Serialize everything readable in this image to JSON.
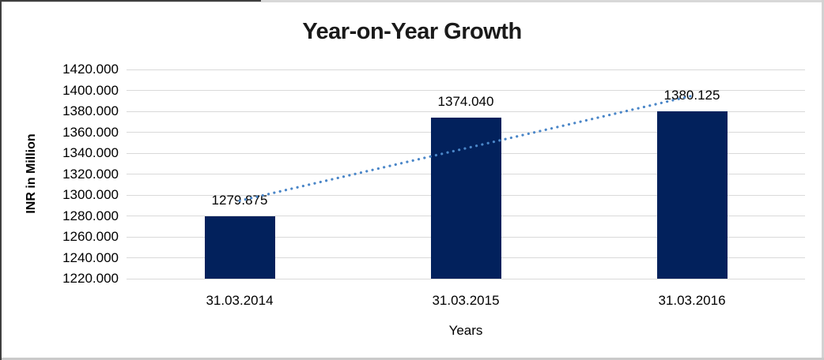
{
  "chart_data": {
    "type": "bar",
    "title": "Year-on-Year Growth",
    "categories": [
      "31.03.2014",
      "31.03.2015",
      "31.03.2016"
    ],
    "values": [
      1279.875,
      1374.04,
      1380.125
    ],
    "data_labels": [
      "1279.875",
      "1374.040",
      "1380.125"
    ],
    "xlabel": "Years",
    "ylabel": "INR in Million",
    "ylim": [
      1220,
      1420
    ],
    "ytick_step": 20,
    "ytick_labels": [
      "1420.000",
      "1400.000",
      "1380.000",
      "1360.000",
      "1340.000",
      "1320.000",
      "1300.000",
      "1280.000",
      "1260.000",
      "1240.000",
      "1220.000"
    ],
    "grid": true,
    "legend": "none",
    "bar_color": "#02215C",
    "gridline_color": "#d9d9d9",
    "trendline": {
      "style": "dotted",
      "color": "#4a86c8",
      "start_value": 1294.5,
      "end_value": 1394.8
    }
  }
}
